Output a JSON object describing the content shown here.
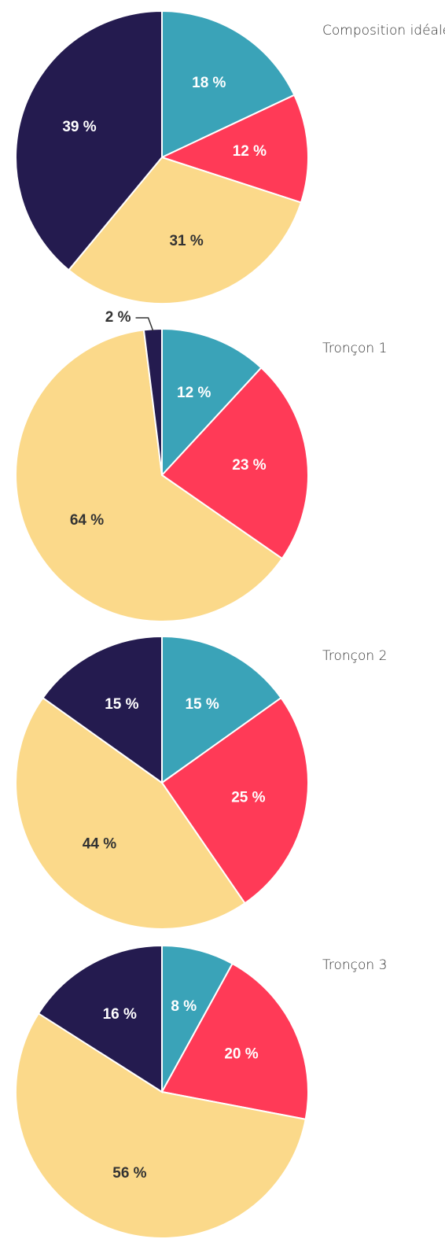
{
  "chart_data": [
    {
      "type": "pie",
      "title": "Composition idéale",
      "values": [
        18,
        12,
        31,
        39
      ],
      "value_labels": [
        "18 %",
        "12 %",
        "31 %",
        "39 %"
      ],
      "colors": [
        "#3aa3b8",
        "#ff3a57",
        "#fbd98a",
        "#241b4f"
      ]
    },
    {
      "type": "pie",
      "title": "Tronçon 1",
      "values": [
        12,
        23,
        64,
        2
      ],
      "value_labels": [
        "12 %",
        "23 %",
        "64 %",
        "2 %"
      ],
      "colors": [
        "#3aa3b8",
        "#ff3a57",
        "#fbd98a",
        "#241b4f"
      ]
    },
    {
      "type": "pie",
      "title": "Tronçon 2",
      "values": [
        15,
        25,
        44,
        15
      ],
      "value_labels": [
        "15 %",
        "25 %",
        "44 %",
        "15 %"
      ],
      "colors": [
        "#3aa3b8",
        "#ff3a57",
        "#fbd98a",
        "#241b4f"
      ]
    },
    {
      "type": "pie",
      "title": "Tronçon 3",
      "values": [
        8,
        20,
        56,
        16
      ],
      "value_labels": [
        "8 %",
        "20 %",
        "56 %",
        "16 %"
      ],
      "colors": [
        "#3aa3b8",
        "#ff3a57",
        "#fbd98a",
        "#241b4f"
      ]
    }
  ]
}
